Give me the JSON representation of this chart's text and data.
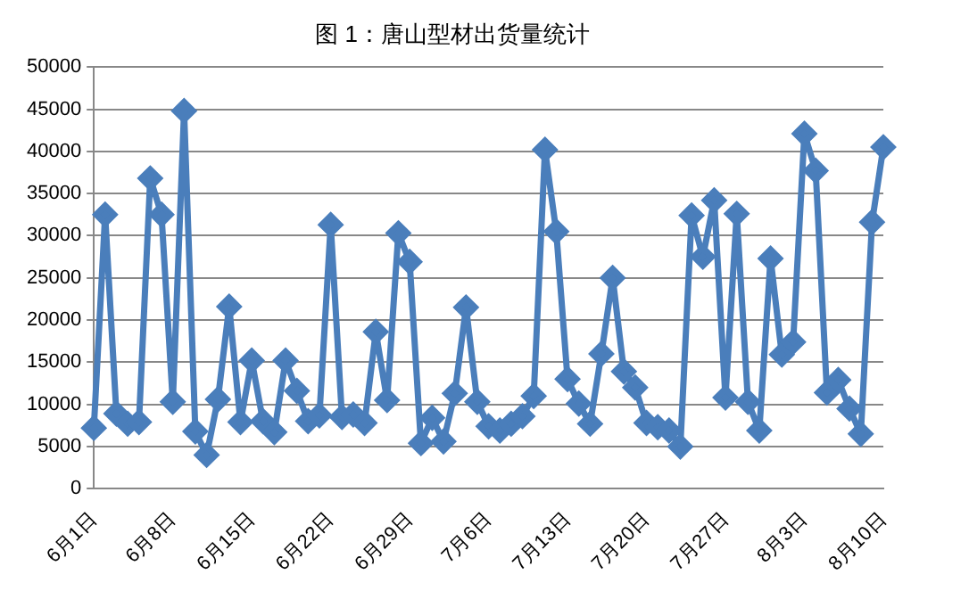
{
  "chart_data": {
    "type": "line",
    "title": "图 1：唐山型材出货量统计",
    "categories": [
      "6月1日",
      null,
      null,
      null,
      null,
      null,
      null,
      "6月8日",
      null,
      null,
      null,
      null,
      null,
      null,
      "6月15日",
      null,
      null,
      null,
      null,
      null,
      null,
      "6月22日",
      null,
      null,
      null,
      null,
      null,
      null,
      "6月29日",
      null,
      null,
      null,
      null,
      null,
      null,
      "7月6日",
      null,
      null,
      null,
      null,
      null,
      null,
      "7月13日",
      null,
      null,
      null,
      null,
      null,
      null,
      "7月20日",
      null,
      null,
      null,
      null,
      null,
      null,
      "7月27日",
      null,
      null,
      null,
      null,
      null,
      null,
      "8月3日",
      null,
      null,
      null,
      null,
      null,
      null,
      "8月10日"
    ],
    "series": [
      {
        "color": "#4a7ebb",
        "values": [
          7200,
          32500,
          8900,
          7700,
          7900,
          36800,
          32500,
          10300,
          44800,
          6800,
          4000,
          10600,
          21600,
          7900,
          15200,
          8000,
          6700,
          15200,
          11600,
          8000,
          8700,
          31300,
          8500,
          8800,
          7800,
          18600,
          10500,
          30300,
          26900,
          5400,
          8400,
          5600,
          11300,
          21500,
          10300,
          7400,
          6900,
          7700,
          8600,
          11000,
          40200,
          30500,
          13000,
          10100,
          7700,
          16000,
          25000,
          13900,
          12000,
          7800,
          7300,
          6900,
          5000,
          32400,
          27500,
          34200,
          10800,
          32600,
          10300,
          6900,
          27300,
          15900,
          17400,
          42100,
          37700,
          11400,
          12900,
          9500,
          6500,
          31600,
          40500
        ]
      }
    ],
    "ylim": [
      0,
      50000
    ],
    "yticks": [
      0,
      5000,
      10000,
      15000,
      20000,
      25000,
      30000,
      35000,
      40000,
      45000,
      50000
    ],
    "grid": "y",
    "legend": false,
    "marker": "diamond",
    "line_style": "solid"
  }
}
